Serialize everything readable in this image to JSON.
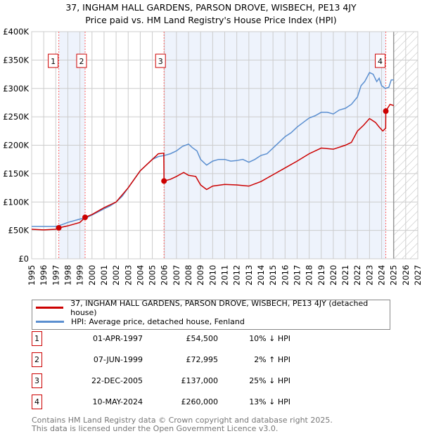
{
  "title_line1": "37, INGHAM HALL GARDENS, PARSON DROVE, WISBECH, PE13 4JY",
  "title_line2": "Price paid vs. HM Land Registry's House Price Index (HPI)",
  "chart_data": {
    "type": "line",
    "xlim": [
      1995,
      2027
    ],
    "ylim": [
      0,
      400000
    ],
    "x_ticks": [
      "1995",
      "1996",
      "1997",
      "1998",
      "1999",
      "2000",
      "2001",
      "2002",
      "2003",
      "2004",
      "2005",
      "2006",
      "2007",
      "2008",
      "2009",
      "2010",
      "2011",
      "2012",
      "2013",
      "2014",
      "2015",
      "2016",
      "2017",
      "2018",
      "2019",
      "2020",
      "2021",
      "2022",
      "2023",
      "2024",
      "2025",
      "2026",
      "2027"
    ],
    "y_ticks": [
      {
        "v": 0,
        "label": "£0"
      },
      {
        "v": 50000,
        "label": "£50K"
      },
      {
        "v": 100000,
        "label": "£100K"
      },
      {
        "v": 150000,
        "label": "£150K"
      },
      {
        "v": 200000,
        "label": "£200K"
      },
      {
        "v": 250000,
        "label": "£250K"
      },
      {
        "v": 300000,
        "label": "£300K"
      },
      {
        "v": 350000,
        "label": "£350K"
      },
      {
        "v": 400000,
        "label": "£400K"
      }
    ],
    "shaded_ranges": [
      [
        1997.25,
        1999.43
      ],
      [
        2005.97,
        2024.35
      ]
    ],
    "forecast_from": 2025,
    "series": [
      {
        "name": "37, INGHAM HALL GARDENS, PARSON DROVE, WISBECH, PE13 4JY (detached house)",
        "color": "#cc0000",
        "x": [
          1995,
          1996,
          1997,
          1997.25,
          1998,
          1999,
          1999.43,
          2000,
          2001,
          2002,
          2003,
          2004,
          2005,
          2005.5,
          2005.95,
          2005.97,
          2006.5,
          2007,
          2007.6,
          2008,
          2008.6,
          2009,
          2009.5,
          2010,
          2011,
          2012,
          2013,
          2014,
          2015,
          2016,
          2017,
          2018,
          2019,
          2020,
          2021,
          2021.5,
          2022,
          2022.5,
          2023,
          2023.5,
          2023.8,
          2024.1,
          2024.34,
          2024.35,
          2024.7,
          2025
        ],
        "y": [
          52000,
          51000,
          52000,
          54500,
          58000,
          64000,
          72995,
          78000,
          90000,
          100000,
          125000,
          155000,
          175000,
          185000,
          186000,
          137000,
          140000,
          145000,
          152000,
          147000,
          145000,
          130000,
          122000,
          128000,
          131000,
          130000,
          128000,
          136000,
          148000,
          160000,
          172000,
          185000,
          195000,
          193000,
          200000,
          205000,
          225000,
          235000,
          247000,
          240000,
          232000,
          225000,
          230000,
          260000,
          272000,
          270000
        ]
      },
      {
        "name": "HPI: Average price, detached house, Fenland",
        "color": "#5b8fd0",
        "x": [
          1995,
          1996,
          1997,
          1997.5,
          1998,
          1999,
          1999.5,
          2000,
          2001,
          2001.5,
          2002,
          2002.5,
          2003,
          2003.5,
          2004,
          2004.5,
          2005,
          2005.5,
          2006,
          2006.5,
          2007,
          2007.5,
          2008,
          2008.3,
          2008.7,
          2009,
          2009.5,
          2010,
          2010.5,
          2011,
          2011.5,
          2012,
          2012.5,
          2013,
          2013.5,
          2014,
          2014.5,
          2015,
          2015.5,
          2016,
          2016.5,
          2017,
          2017.5,
          2018,
          2018.5,
          2019,
          2019.5,
          2020,
          2020.5,
          2021,
          2021.5,
          2022,
          2022.3,
          2022.6,
          2023,
          2023.3,
          2023.6,
          2023.8,
          2024,
          2024.3,
          2024.6,
          2024.8,
          2025
        ],
        "y": [
          57000,
          57000,
          57000,
          60000,
          64000,
          70000,
          72000,
          77000,
          88000,
          93000,
          100000,
          110000,
          125000,
          140000,
          155000,
          165000,
          175000,
          180000,
          182000,
          185000,
          190000,
          198000,
          202000,
          196000,
          190000,
          175000,
          165000,
          172000,
          175000,
          175000,
          172000,
          173000,
          175000,
          170000,
          175000,
          182000,
          185000,
          195000,
          205000,
          215000,
          222000,
          232000,
          240000,
          248000,
          252000,
          258000,
          258000,
          255000,
          262000,
          265000,
          272000,
          285000,
          305000,
          312000,
          328000,
          325000,
          312000,
          318000,
          305000,
          300000,
          302000,
          315000,
          315000
        ]
      }
    ],
    "sales": [
      {
        "label": "1",
        "x": 1997.25,
        "y": 54500
      },
      {
        "label": "2",
        "x": 1999.43,
        "y": 72995
      },
      {
        "label": "3",
        "x": 2005.97,
        "y": 137000
      },
      {
        "label": "4",
        "x": 2024.35,
        "y": 260000
      }
    ]
  },
  "legend": {
    "property": "37, INGHAM HALL GARDENS, PARSON DROVE, WISBECH, PE13 4JY (detached house)",
    "hpi": "HPI: Average price, detached house, Fenland"
  },
  "transactions": [
    {
      "num": "1",
      "date": "01-APR-1997",
      "price": "£54,500",
      "hpi": "10% ↓ HPI"
    },
    {
      "num": "2",
      "date": "07-JUN-1999",
      "price": "£72,995",
      "hpi": "2% ↑ HPI"
    },
    {
      "num": "3",
      "date": "22-DEC-2005",
      "price": "£137,000",
      "hpi": "25% ↓ HPI"
    },
    {
      "num": "4",
      "date": "10-MAY-2024",
      "price": "£260,000",
      "hpi": "13% ↓ HPI"
    }
  ],
  "footer_line1": "Contains HM Land Registry data © Crown copyright and database right 2025.",
  "footer_line2": "This data is licensed under the Open Government Licence v3.0."
}
